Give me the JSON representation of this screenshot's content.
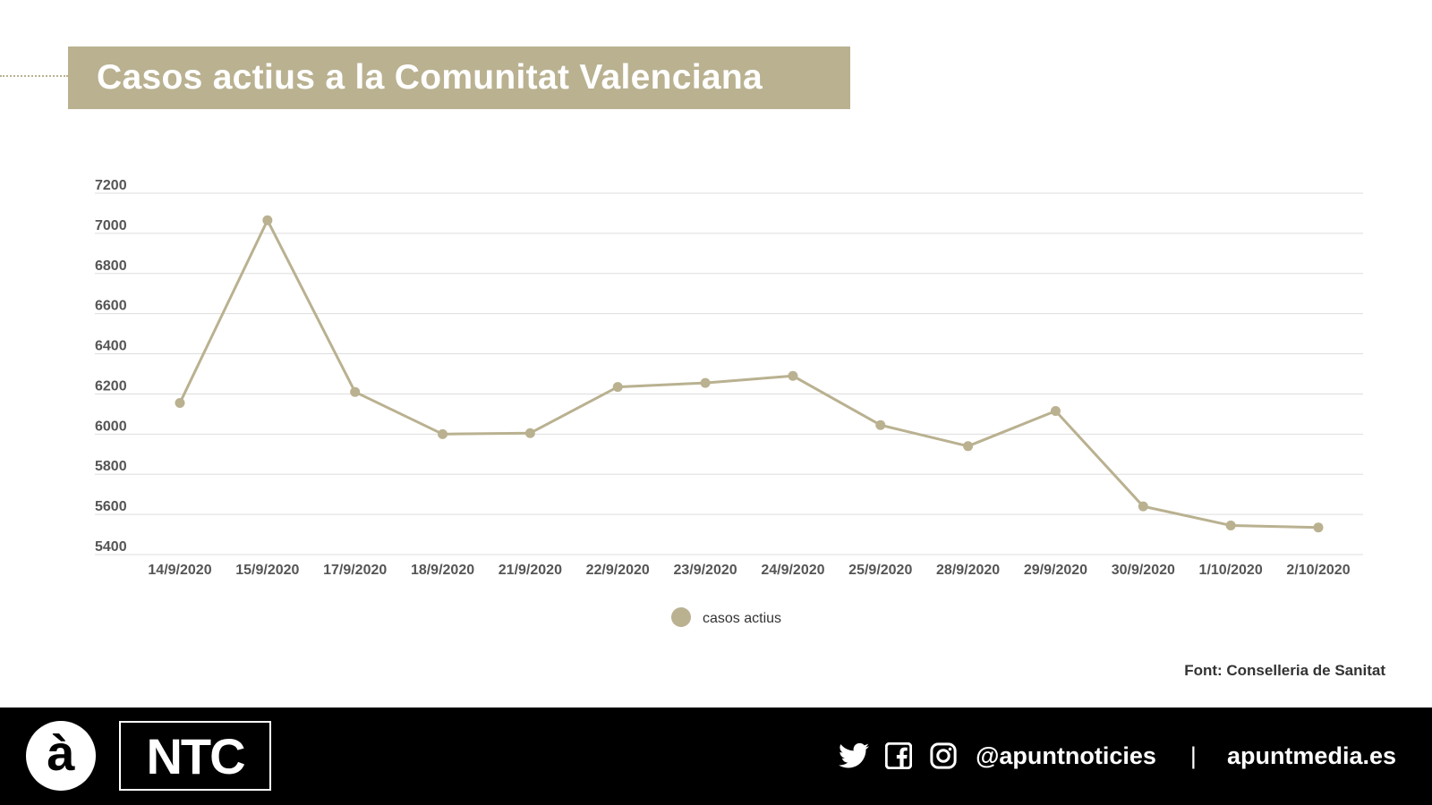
{
  "header": {
    "title": "Casos actius a la Comunitat Valenciana"
  },
  "chart_data": {
    "type": "line",
    "categories": [
      "14/9/2020",
      "15/9/2020",
      "17/9/2020",
      "18/9/2020",
      "21/9/2020",
      "22/9/2020",
      "23/9/2020",
      "24/9/2020",
      "25/9/2020",
      "28/9/2020",
      "29/9/2020",
      "30/9/2020",
      "1/10/2020",
      "2/10/2020"
    ],
    "series": [
      {
        "name": "casos actius",
        "values": [
          6155,
          7065,
          6210,
          6000,
          6005,
          6235,
          6255,
          6290,
          6045,
          5940,
          6115,
          5640,
          5545,
          5535
        ]
      }
    ],
    "yticks": [
      5400,
      5600,
      5800,
      6000,
      6200,
      6400,
      6600,
      6800,
      7000,
      7200
    ],
    "ylim": [
      5400,
      7200
    ],
    "grid": true,
    "legend": "bottom-center",
    "color": "#b9b190"
  },
  "source": "Font: Conselleria de Sanitat",
  "footer": {
    "logo_mark": "à",
    "logo_ntc": "NTC",
    "handle": "@apuntnoticies",
    "separator": "|",
    "website": "apuntmedia.es",
    "icons": [
      "twitter-icon",
      "facebook-icon",
      "instagram-icon"
    ]
  }
}
